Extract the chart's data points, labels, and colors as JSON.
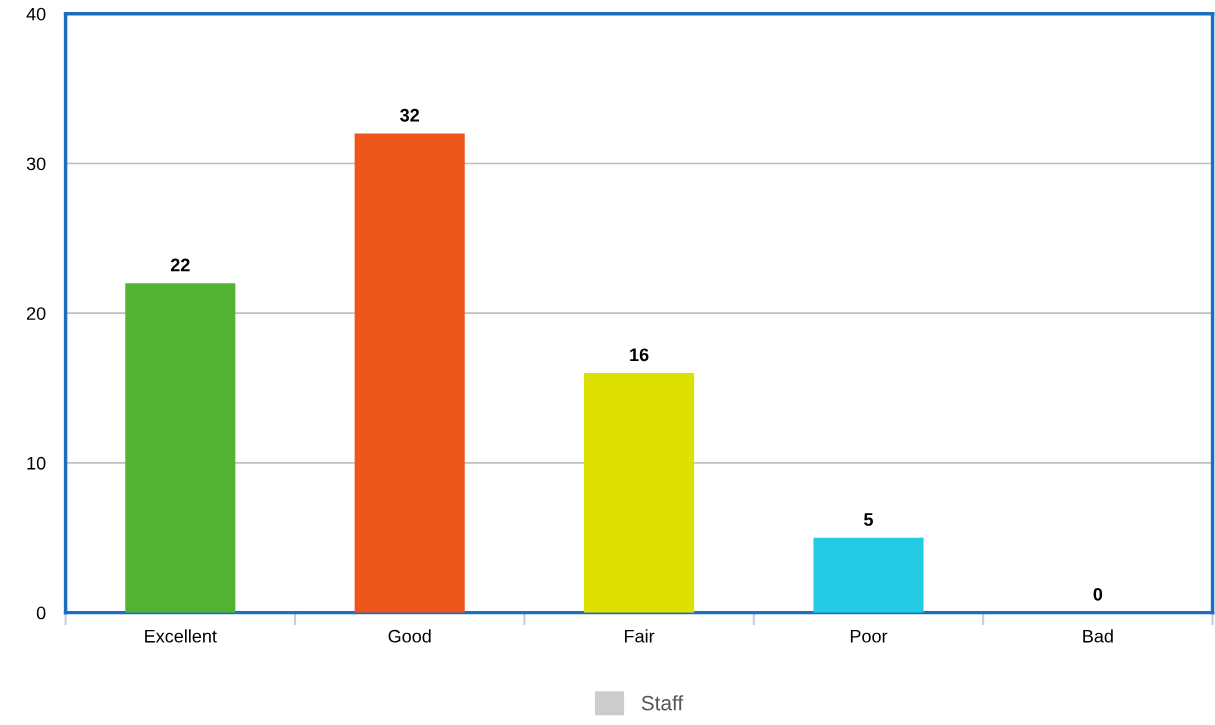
{
  "chart_data": {
    "type": "bar",
    "categories": [
      "Excellent",
      "Good",
      "Fair",
      "Poor",
      "Bad"
    ],
    "series": [
      {
        "name": "Staff",
        "color": "#cccccc",
        "colors": [
          "#52b232",
          "#ec561b",
          "#dee000",
          "#24cbe5",
          "#64e572"
        ],
        "values": [
          22,
          32,
          16,
          5,
          0
        ]
      }
    ],
    "ylim": [
      0,
      40
    ],
    "yticks": [
      0,
      10,
      20,
      30,
      40
    ],
    "grid": "y",
    "legend": "bottom",
    "data_labels": true
  }
}
